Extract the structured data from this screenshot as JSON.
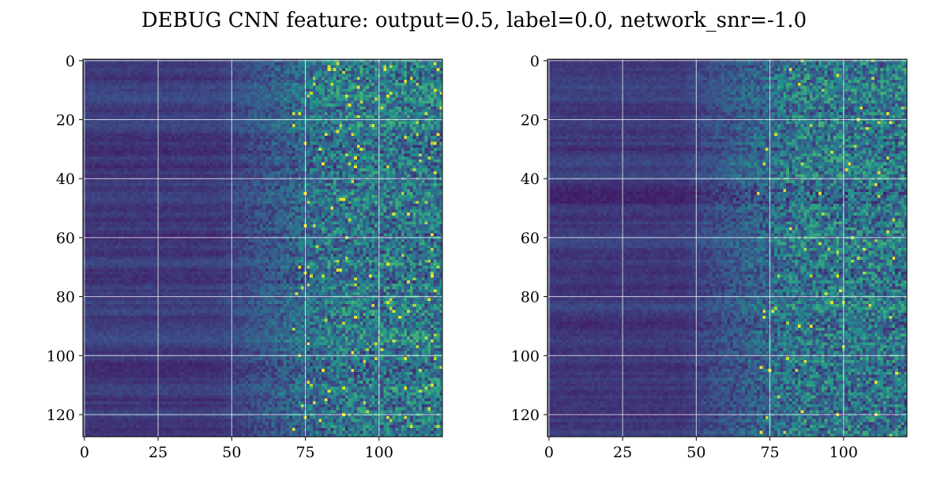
{
  "chart_data": [
    {
      "type": "heatmap",
      "title": "DEBUG CNN feature: output=0.5, label=0.0, network_snr=-1.0",
      "subplot": "left",
      "colormap": "viridis",
      "grid": true,
      "xlim": [
        0,
        121
      ],
      "ylim": [
        128,
        0
      ],
      "xticks": [
        0,
        25,
        50,
        75,
        100
      ],
      "xtick_labels": [
        "0",
        "25",
        "50",
        "75",
        "100"
      ],
      "yticks": [
        0,
        20,
        40,
        60,
        80,
        100,
        120
      ],
      "ytick_labels": [
        "0",
        "20",
        "40",
        "60",
        "80",
        "100",
        "120"
      ],
      "rows": 128,
      "columns": 122,
      "pattern": "low values for columns 0-50, rising noisy values with bright yellow speckles for columns 60-121"
    },
    {
      "type": "heatmap",
      "subplot": "right",
      "colormap": "viridis",
      "grid": true,
      "xlim": [
        0,
        121
      ],
      "ylim": [
        128,
        0
      ],
      "xticks": [
        0,
        25,
        50,
        75,
        100
      ],
      "xtick_labels": [
        "0",
        "25",
        "50",
        "75",
        "100"
      ],
      "yticks": [
        0,
        20,
        40,
        60,
        80,
        100,
        120
      ],
      "ytick_labels": [
        "0",
        "20",
        "40",
        "60",
        "80",
        "100",
        "120"
      ],
      "rows": 128,
      "columns": 122,
      "pattern": "low values for columns 0-50, rising noisy values with occasional bright speckles for columns 60-121"
    }
  ],
  "figure": {
    "suptitle": "DEBUG CNN feature: output=0.5, label=0.0, network_snr=-1.0"
  },
  "colors": {
    "viridis_low": "#440154",
    "viridis_mid": "#21918c",
    "viridis_high": "#fde725",
    "grid": "#ffffff"
  }
}
